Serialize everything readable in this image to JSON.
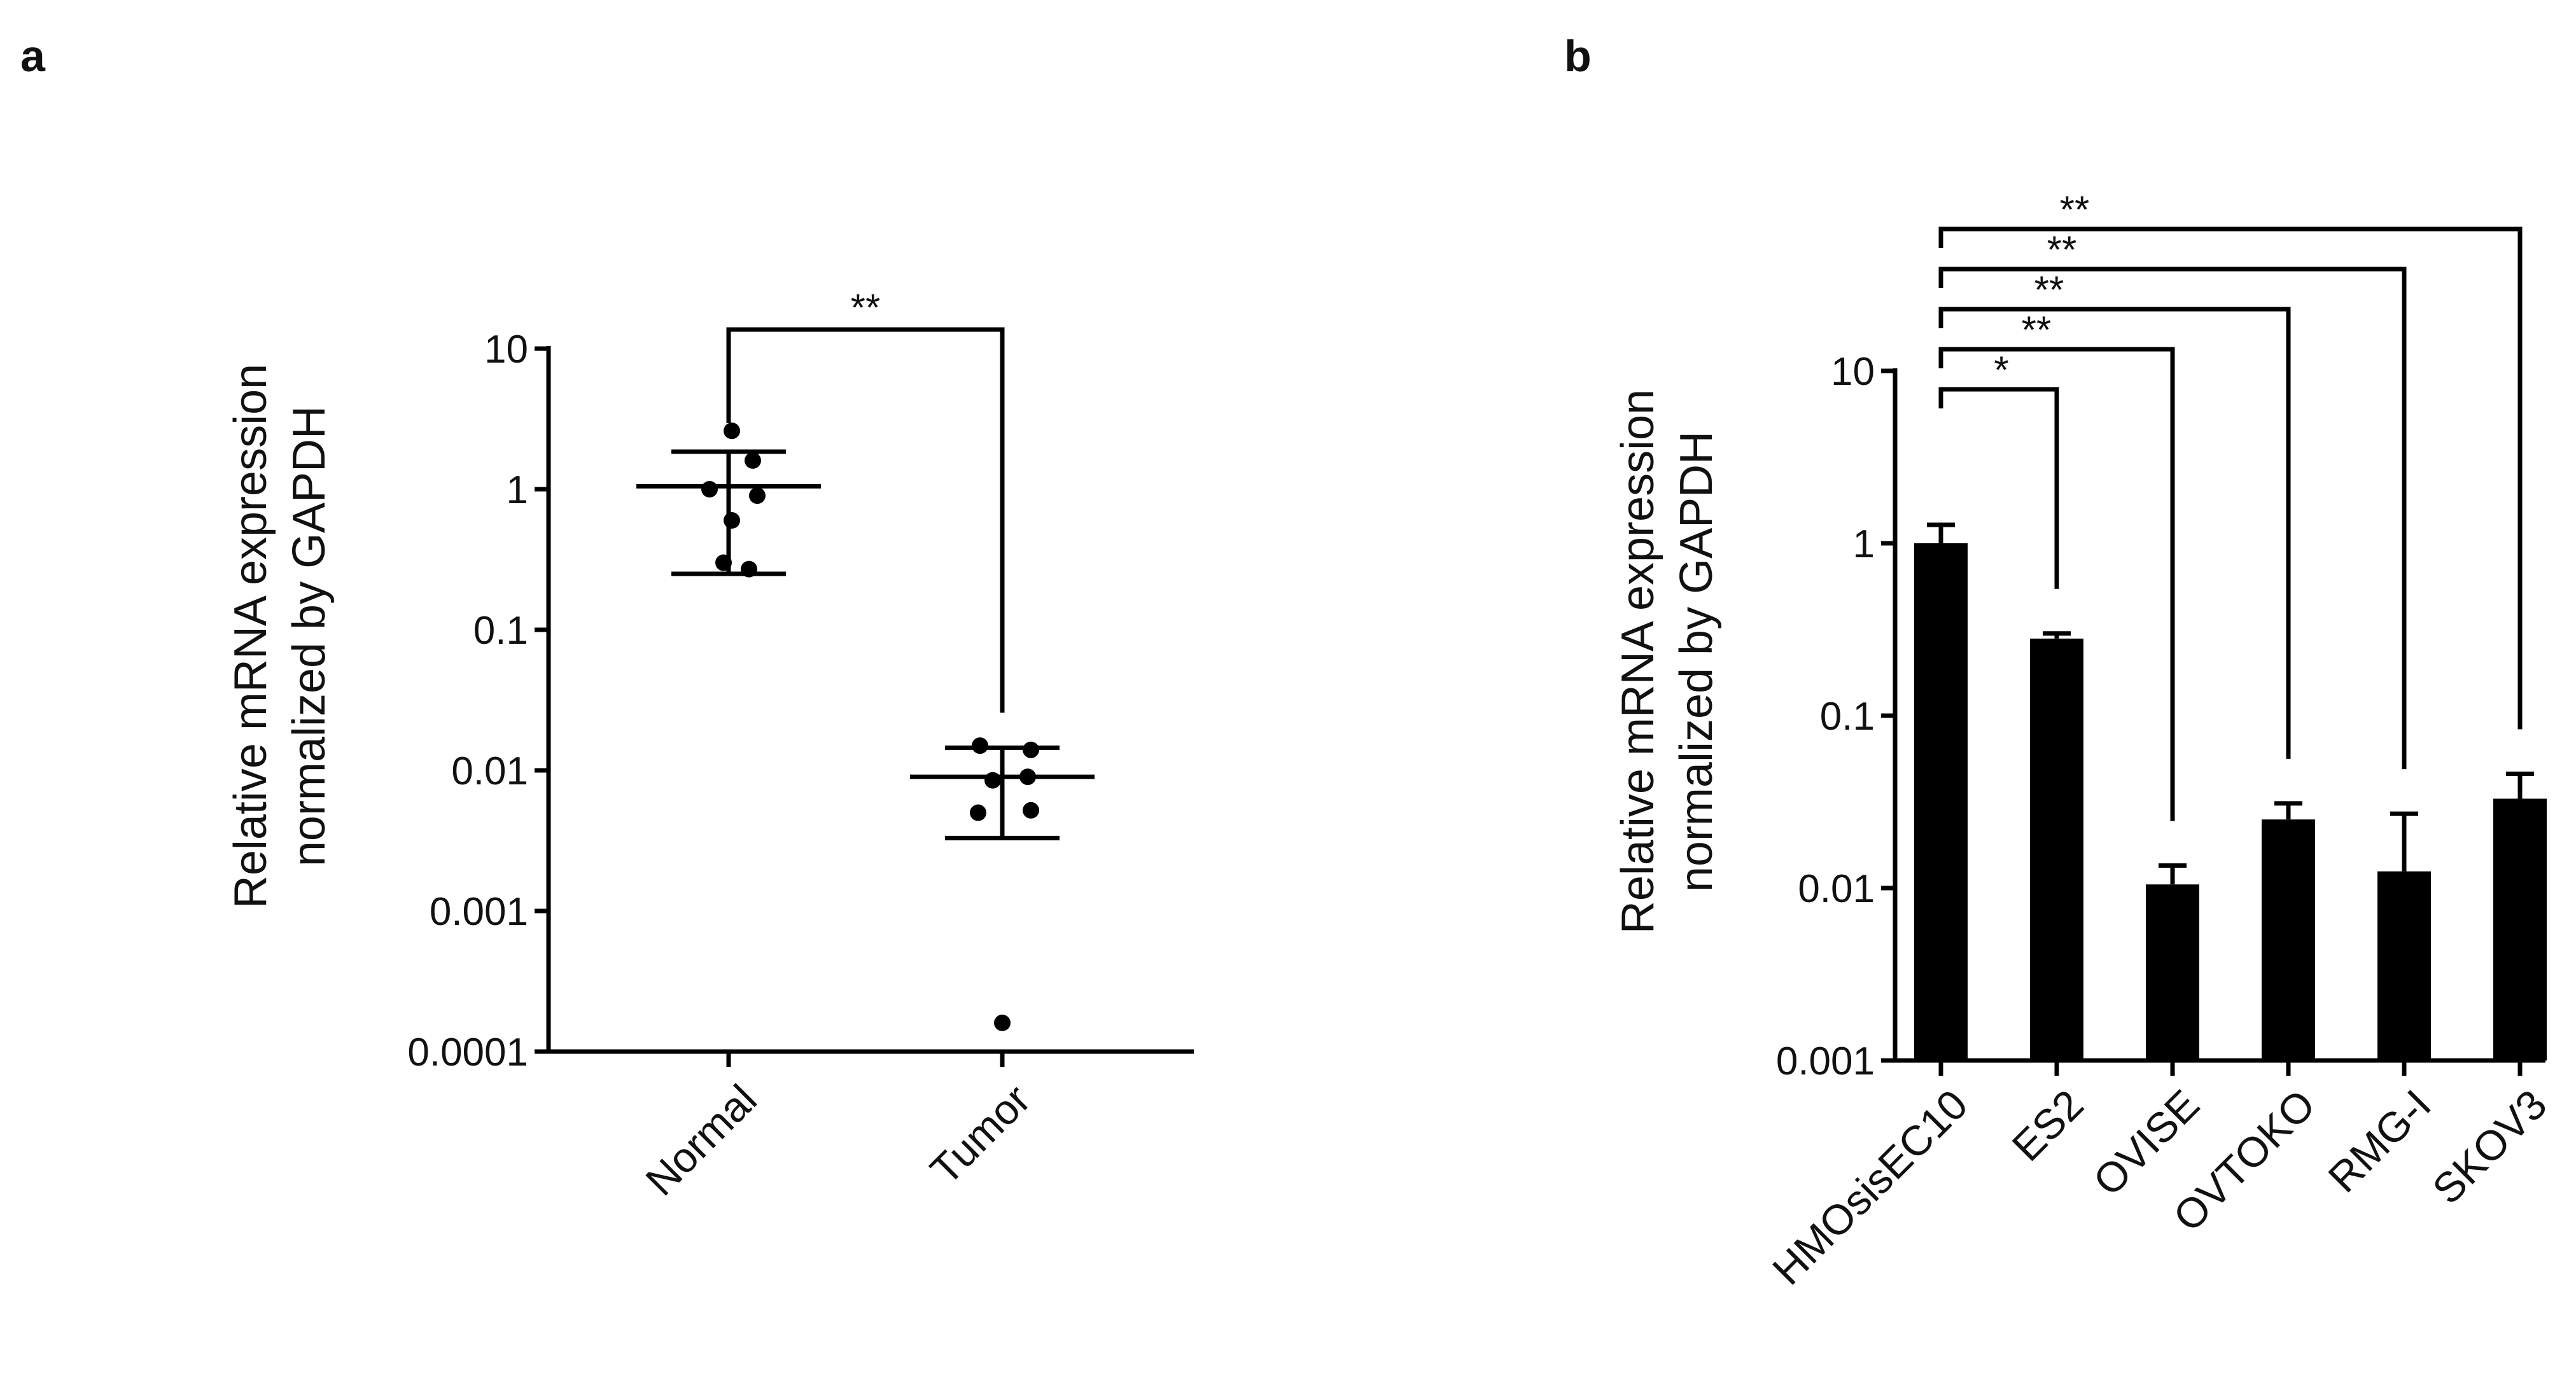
{
  "panels": {
    "a": {
      "label": "a"
    },
    "b": {
      "label": "b"
    }
  },
  "chart_data": [
    {
      "id": "a",
      "type": "scatter",
      "scale": "log",
      "ylim": [
        0.0001,
        10
      ],
      "yticks": [
        "10",
        "1",
        "0.1",
        "0.01",
        "0.001",
        "0.0001"
      ],
      "ytick_values": [
        10,
        1,
        0.1,
        0.01,
        0.001,
        0.0001
      ],
      "ylabel_lines": [
        "Relative mRNA expression",
        "normalized by GAPDH"
      ],
      "categories": [
        "Normal",
        "Tumor"
      ],
      "points": [
        [
          2.6,
          1.6,
          1.0,
          0.9,
          0.6,
          0.3,
          0.27
        ],
        [
          0.015,
          0.014,
          0.009,
          0.0085,
          0.0052,
          0.005,
          0.00016
        ]
      ],
      "mean": [
        1.05,
        0.009
      ],
      "error_low": [
        0.25,
        0.0033
      ],
      "error_high": [
        1.85,
        0.0145
      ],
      "significance": [
        {
          "from": 0,
          "to": 1,
          "label": "**"
        }
      ],
      "color": "#000000"
    },
    {
      "id": "b",
      "type": "bar",
      "scale": "log",
      "ylim": [
        0.001,
        10
      ],
      "yticks": [
        "10",
        "1",
        "0.1",
        "0.01",
        "0.001"
      ],
      "ytick_values": [
        10,
        1,
        0.1,
        0.01,
        0.001
      ],
      "ylabel_lines": [
        "Relative mRNA expression",
        "normalized by GAPDH"
      ],
      "categories": [
        "HMOsisEC10",
        "ES2",
        "OVISE",
        "OVTOKO",
        "RMG-I",
        "SKOV3"
      ],
      "values": [
        1.0,
        0.28,
        0.0105,
        0.025,
        0.0125,
        0.033
      ],
      "error_high": [
        1.28,
        0.3,
        0.0135,
        0.031,
        0.027,
        0.046
      ],
      "significance": [
        {
          "from": 0,
          "to": 1,
          "label": "*"
        },
        {
          "from": 0,
          "to": 2,
          "label": "**"
        },
        {
          "from": 0,
          "to": 3,
          "label": "**"
        },
        {
          "from": 0,
          "to": 4,
          "label": "**"
        },
        {
          "from": 0,
          "to": 5,
          "label": "**"
        }
      ],
      "color": "#000000"
    }
  ]
}
